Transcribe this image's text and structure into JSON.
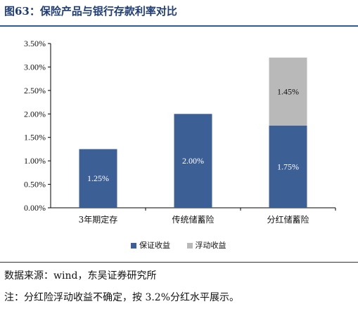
{
  "figure": {
    "title": "图63：保险产品与银行存款利率对比",
    "source": "数据来源：wind，东吴证券研究所",
    "note": "注：分红险浮动收益不确定，按 3.2%分红水平展示。"
  },
  "colors": {
    "guaranteed": "#3c5f96",
    "floating": "#b9b9b9",
    "axis": "#000000"
  },
  "chart_data": {
    "type": "bar",
    "stacked": true,
    "categories": [
      "3年期定存",
      "传统储蓄险",
      "分红储蓄险"
    ],
    "series": [
      {
        "name": "保证收益",
        "values": [
          1.25,
          2.0,
          1.75
        ],
        "labels": [
          "1.25%",
          "2.00%",
          "1.75%"
        ]
      },
      {
        "name": "浮动收益",
        "values": [
          0,
          0,
          1.45
        ],
        "labels": [
          "",
          "",
          "1.45%"
        ]
      }
    ],
    "y_ticks": [
      "0.00%",
      "0.50%",
      "1.00%",
      "1.50%",
      "2.00%",
      "2.50%",
      "3.00%",
      "3.50%"
    ],
    "ylim": [
      0,
      3.5
    ],
    "grid": false,
    "legend_position": "bottom"
  }
}
